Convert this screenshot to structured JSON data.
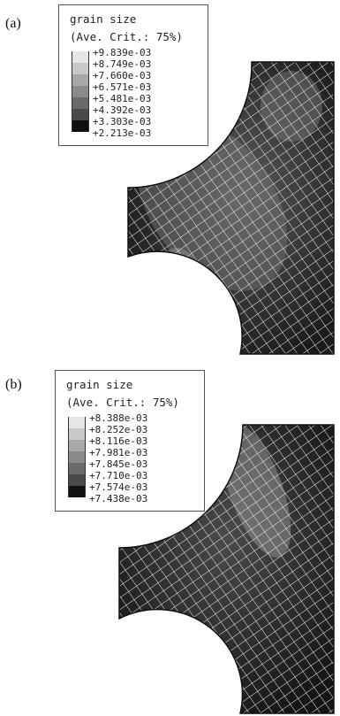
{
  "panels": [
    {
      "label": "(a)",
      "legend": {
        "title": "grain size",
        "subtitle": "(Ave. Crit.: 75%)",
        "values": [
          "+9.839e-03",
          "+8.749e-03",
          "+7.660e-03",
          "+6.571e-03",
          "+5.481e-03",
          "+4.392e-03",
          "+3.303e-03",
          "+2.213e-03"
        ],
        "colors": [
          "#e6e6e6",
          "#c8c8c8",
          "#a8a8a8",
          "#8a8a8a",
          "#6a6a6a",
          "#4a4a4a",
          "#2c2c2c",
          "#101010"
        ]
      }
    },
    {
      "label": "(b)",
      "legend": {
        "title": "grain size",
        "subtitle": "(Ave. Crit.: 75%)",
        "values": [
          "+8.388e-03",
          "+8.252e-03",
          "+8.116e-03",
          "+7.981e-03",
          "+7.845e-03",
          "+7.710e-03",
          "+7.574e-03",
          "+7.438e-03"
        ],
        "colors": [
          "#e6e6e6",
          "#c8c8c8",
          "#a8a8a8",
          "#8a8a8a",
          "#6a6a6a",
          "#4a4a4a",
          "#2c2c2c",
          "#101010"
        ]
      }
    }
  ]
}
